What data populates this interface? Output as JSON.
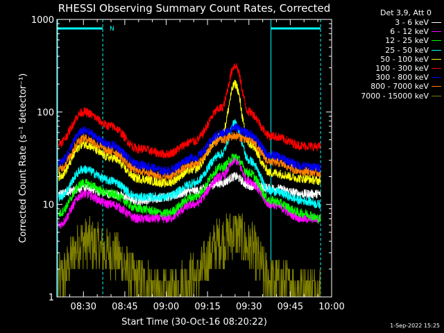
{
  "chart_data": {
    "type": "line",
    "title": "RHESSI Observing Summary Count Rates, Corrected",
    "xlabel": "Start Time (30-Oct-16 08:20:22)",
    "ylabel": "Corrected Count Rate (s⁻¹ detector⁻¹)",
    "yscale": "log",
    "ylim": [
      1,
      1000
    ],
    "xlim": [
      "08:20:22",
      "10:00:00"
    ],
    "x_ticks": [
      "08:30",
      "08:45",
      "09:00",
      "09:15",
      "09:30",
      "09:45",
      "10:00"
    ],
    "y_ticks": [
      "1",
      "10",
      "100",
      "1000"
    ],
    "legend_title": "Det 3,9, Att 0",
    "legend_position": "right, outside plot",
    "series": [
      {
        "name": "3 - 6 keV",
        "color": "#ffffff",
        "times": [
          "08:21",
          "08:30",
          "08:40",
          "08:50",
          "09:00",
          "09:10",
          "09:20",
          "09:25",
          "09:30",
          "09:38",
          "09:50",
          "09:56"
        ],
        "values": [
          13,
          15,
          13,
          11,
          12,
          14,
          17,
          20,
          16,
          15,
          13,
          13
        ]
      },
      {
        "name": "6 - 12 keV",
        "color": "#ff00ff",
        "times": [
          "08:21",
          "08:30",
          "08:40",
          "08:50",
          "09:00",
          "09:10",
          "09:20",
          "09:25",
          "09:30",
          "09:38",
          "09:50",
          "09:56"
        ],
        "values": [
          6,
          13,
          10,
          7,
          7,
          10,
          20,
          30,
          18,
          10,
          7,
          7
        ]
      },
      {
        "name": "12 - 25 keV",
        "color": "#00ff00",
        "times": [
          "08:21",
          "08:30",
          "08:40",
          "08:50",
          "09:00",
          "09:10",
          "09:20",
          "09:25",
          "09:30",
          "09:38",
          "09:50",
          "09:56"
        ],
        "values": [
          8,
          17,
          13,
          9,
          8,
          12,
          25,
          33,
          22,
          11,
          8,
          7
        ]
      },
      {
        "name": "25 - 50 keV",
        "color": "#00ffff",
        "times": [
          "08:21",
          "08:30",
          "08:40",
          "08:50",
          "09:00",
          "09:10",
          "09:20",
          "09:25",
          "09:30",
          "09:38",
          "09:50",
          "09:56"
        ],
        "values": [
          12,
          24,
          18,
          12,
          12,
          17,
          35,
          75,
          30,
          14,
          11,
          10
        ]
      },
      {
        "name": "50 - 100 keV",
        "color": "#ffff00",
        "times": [
          "08:21",
          "08:30",
          "08:40",
          "08:50",
          "09:00",
          "09:10",
          "09:20",
          "09:25",
          "09:30",
          "09:38",
          "09:50",
          "09:56"
        ],
        "values": [
          20,
          45,
          32,
          19,
          17,
          24,
          55,
          200,
          45,
          22,
          19,
          18
        ]
      },
      {
        "name": "100 - 300 keV",
        "color": "#ff0000",
        "times": [
          "08:21",
          "08:30",
          "08:40",
          "08:50",
          "09:00",
          "09:10",
          "09:20",
          "09:25",
          "09:30",
          "09:38",
          "09:50",
          "09:56"
        ],
        "values": [
          46,
          100,
          70,
          40,
          35,
          48,
          110,
          320,
          100,
          55,
          43,
          42
        ]
      },
      {
        "name": "300 - 800 keV",
        "color": "#0000ff",
        "times": [
          "08:21",
          "08:30",
          "08:40",
          "08:50",
          "09:00",
          "09:10",
          "09:20",
          "09:25",
          "09:30",
          "09:38",
          "09:50",
          "09:56"
        ],
        "values": [
          28,
          62,
          44,
          27,
          23,
          32,
          58,
          68,
          58,
          34,
          26,
          25
        ]
      },
      {
        "name": "800 - 7000 keV",
        "color": "#ff8000",
        "times": [
          "08:21",
          "08:30",
          "08:40",
          "08:50",
          "09:00",
          "09:10",
          "09:20",
          "09:25",
          "09:30",
          "09:38",
          "09:50",
          "09:56"
        ],
        "values": [
          24,
          52,
          38,
          23,
          20,
          27,
          50,
          55,
          50,
          29,
          23,
          22
        ]
      },
      {
        "name": "7000 - 15000 keV",
        "color": "#808000",
        "times": [
          "08:21",
          "08:30",
          "08:40",
          "08:50",
          "09:00",
          "09:10",
          "09:20",
          "09:25",
          "09:30",
          "09:38",
          "09:50",
          "09:56"
        ],
        "values": [
          1.5,
          4,
          3,
          1.5,
          1,
          1.6,
          4,
          5,
          3.5,
          1.5,
          1.2,
          1.2
        ]
      }
    ],
    "attenuator_bars": [
      {
        "start": "08:20:22",
        "end": "08:37"
      },
      {
        "start": "09:38",
        "end": "09:56"
      }
    ],
    "marker_label": "N",
    "colors": {
      "background": "#000000",
      "axes": "#ffffff",
      "attenuator": "#00ffff"
    }
  },
  "timestamp": "1-Sep-2022 15:25"
}
